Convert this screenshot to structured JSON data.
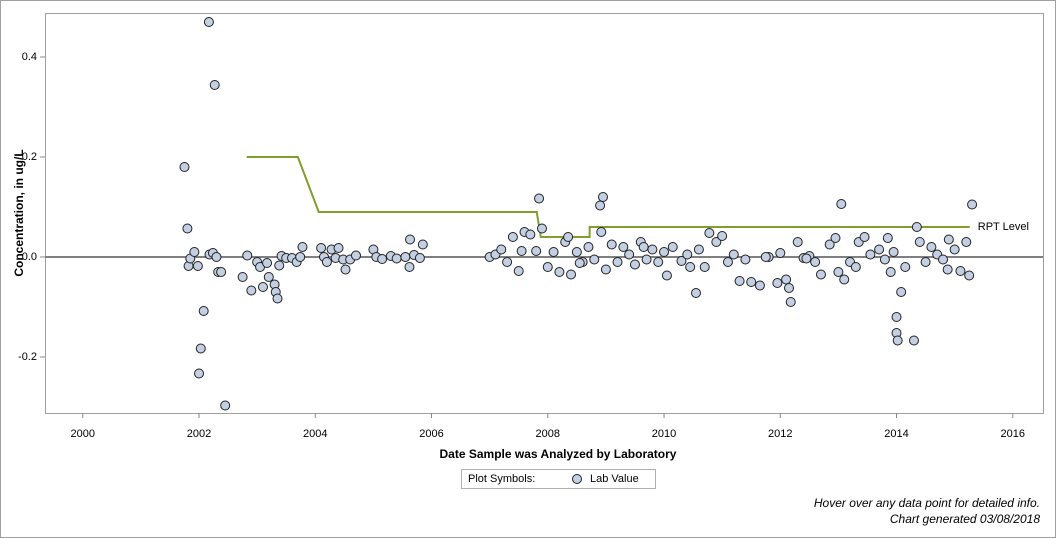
{
  "chart_data": {
    "type": "scatter",
    "x_label": "Date Sample was Analyzed by Laboratory",
    "y_label": "Concentration, in ug/L",
    "xlim": [
      1999.35,
      2016.52
    ],
    "xticks": [
      2000,
      2002,
      2004,
      2006,
      2008,
      2010,
      2012,
      2014,
      2016
    ],
    "ylim": [
      -0.312,
      0.488
    ],
    "yticks": [
      -0.2,
      {
        "value": 0,
        "label": "0.0"
      },
      0.2,
      0.4
    ],
    "reference_line": 0,
    "legend_title": "Plot Symbols:",
    "series": [
      {
        "name": "Lab Value",
        "type": "scatter",
        "color": "#c3cfe2",
        "x": [
          2001.75,
          2001.8,
          2001.82,
          2001.85,
          2001.92,
          2001.98,
          2002.0,
          2002.03,
          2002.08,
          2002.17,
          2002.18,
          2002.24,
          2002.27,
          2002.3,
          2002.33,
          2002.38,
          2002.45,
          2002.75,
          2002.83,
          2002.9,
          2003.0,
          2003.05,
          2003.1,
          2003.17,
          2003.2,
          2003.3,
          2003.32,
          2003.35,
          2003.38,
          2003.42,
          2003.5,
          2003.6,
          2003.68,
          2003.74,
          2003.78,
          2004.1,
          2004.15,
          2004.2,
          2004.28,
          2004.35,
          2004.4,
          2004.48,
          2004.52,
          2004.6,
          2004.7,
          2005.0,
          2005.05,
          2005.15,
          2005.3,
          2005.4,
          2005.55,
          2005.62,
          2005.63,
          2005.7,
          2005.8,
          2005.85,
          2007.0,
          2007.1,
          2007.2,
          2007.3,
          2007.4,
          2007.5,
          2007.55,
          2007.6,
          2007.7,
          2007.8,
          2007.85,
          2007.9,
          2008.0,
          2008.1,
          2008.2,
          2008.3,
          2008.35,
          2008.4,
          2008.5,
          2008.6,
          2008.7,
          2008.8,
          2008.9,
          2008.92,
          2008.95,
          2009.0,
          2009.1,
          2009.2,
          2009.3,
          2009.4,
          2009.5,
          2009.6,
          2009.7,
          2009.8,
          2009.9,
          2010.0,
          2010.05,
          2010.15,
          2010.3,
          2010.4,
          2010.55,
          2010.6,
          2010.7,
          2010.78,
          2010.9,
          2011.0,
          2011.1,
          2011.2,
          2011.3,
          2011.4,
          2011.5,
          2011.65,
          2011.8,
          2011.95,
          2012.0,
          2012.1,
          2012.15,
          2012.18,
          2012.3,
          2012.4,
          2012.5,
          2012.6,
          2012.7,
          2012.85,
          2012.95,
          2013.0,
          2013.05,
          2013.1,
          2013.2,
          2013.3,
          2013.35,
          2013.45,
          2013.55,
          2013.7,
          2013.85,
          2013.9,
          2013.95,
          2014.0,
          2014.0,
          2014.02,
          2014.08,
          2014.15,
          2014.3,
          2014.35,
          2014.4,
          2014.5,
          2014.6,
          2014.7,
          2014.8,
          2014.9,
          2015.0,
          2015.1,
          2015.2,
          2015.25,
          2015.3,
          2014.88,
          2013.8,
          2012.45,
          2011.75,
          2010.45,
          2009.65,
          2008.55
        ],
        "values": [
          0.18,
          0.057,
          -0.018,
          -0.003,
          0.01,
          -0.018,
          -0.233,
          -0.183,
          -0.108,
          0.47,
          0.005,
          0.008,
          0.344,
          0.0,
          -0.03,
          -0.03,
          -0.297,
          -0.04,
          0.003,
          -0.067,
          -0.01,
          -0.02,
          -0.06,
          -0.012,
          -0.04,
          -0.055,
          -0.07,
          -0.083,
          -0.017,
          0.002,
          -0.002,
          -0.002,
          -0.01,
          0.0,
          0.02,
          0.018,
          0.0,
          -0.01,
          0.015,
          -0.002,
          0.018,
          -0.005,
          -0.025,
          -0.005,
          0.003,
          0.015,
          0.0,
          -0.004,
          0.002,
          -0.003,
          0.0,
          -0.02,
          0.035,
          0.004,
          -0.002,
          0.025,
          0.0,
          0.005,
          0.015,
          -0.01,
          0.04,
          -0.028,
          0.012,
          0.05,
          0.045,
          0.012,
          0.117,
          0.057,
          -0.02,
          0.01,
          -0.03,
          0.03,
          0.04,
          -0.035,
          0.01,
          -0.01,
          0.02,
          -0.005,
          0.103,
          0.05,
          0.12,
          -0.025,
          0.025,
          -0.01,
          0.02,
          0.005,
          -0.015,
          0.03,
          -0.005,
          0.015,
          -0.01,
          0.01,
          -0.037,
          0.02,
          -0.008,
          0.005,
          -0.072,
          0.015,
          -0.02,
          0.048,
          0.03,
          0.042,
          -0.01,
          0.005,
          -0.048,
          -0.005,
          -0.05,
          -0.057,
          0.0,
          -0.052,
          0.008,
          -0.045,
          -0.062,
          -0.09,
          0.03,
          -0.002,
          0.002,
          -0.01,
          -0.035,
          0.025,
          0.038,
          -0.03,
          0.106,
          -0.045,
          -0.01,
          -0.02,
          0.03,
          0.04,
          0.005,
          0.015,
          0.038,
          -0.03,
          0.01,
          -0.12,
          -0.152,
          -0.167,
          -0.07,
          -0.02,
          -0.167,
          0.06,
          0.03,
          -0.01,
          0.02,
          0.005,
          -0.005,
          0.035,
          0.015,
          -0.028,
          0.03,
          -0.037,
          0.105,
          -0.025,
          -0.005,
          -0.003,
          0.0,
          -0.02,
          0.02,
          -0.012
        ]
      },
      {
        "name": "RPT Level",
        "type": "line",
        "color": "#7f9f2e",
        "x": [
          2002.82,
          2003.7,
          2004.06,
          2007.81,
          2007.88,
          2008.72,
          2008.72,
          2015.26
        ],
        "values": [
          0.2,
          0.2,
          0.09,
          0.09,
          0.04,
          0.04,
          0.06,
          0.06
        ]
      }
    ],
    "footnotes": [
      "Hover over any data point for detailed info.",
      "Chart generated 03/08/2018"
    ]
  }
}
